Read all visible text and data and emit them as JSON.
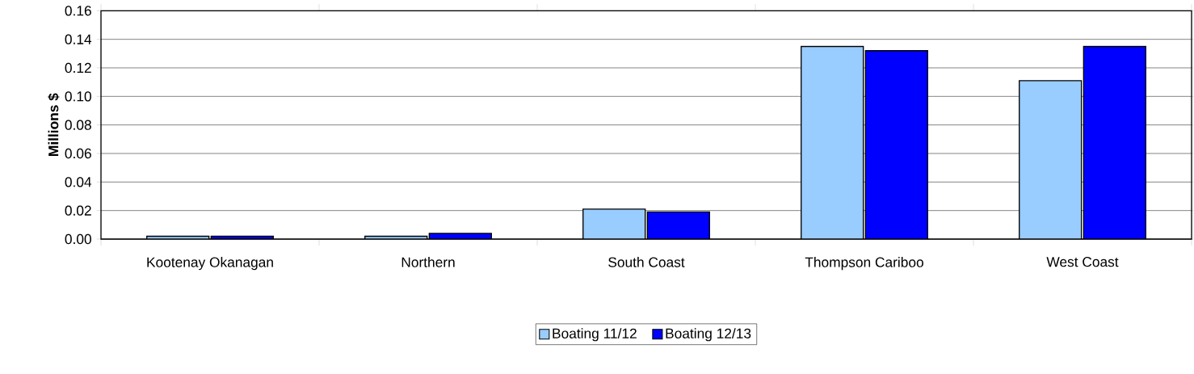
{
  "chart_data": {
    "type": "bar",
    "ylabel": "Millions $",
    "categories": [
      "Kootenay Okanagan",
      "Northern",
      "South Coast",
      "Thompson Cariboo",
      "West Coast"
    ],
    "series": [
      {
        "name": "Boating 11/12",
        "color": "#99ccff",
        "values": [
          0.002,
          0.002,
          0.021,
          0.135,
          0.111
        ]
      },
      {
        "name": "Boating 12/13",
        "color": "#0000ff",
        "values": [
          0.002,
          0.004,
          0.019,
          0.132,
          0.135
        ]
      }
    ],
    "ylim": [
      0,
      0.16
    ],
    "yticks": [
      {
        "value": 0,
        "label": "0.00"
      },
      {
        "value": 0.02,
        "label": "0.02"
      },
      {
        "value": 0.04,
        "label": "0.04"
      },
      {
        "value": 0.06,
        "label": "0.06"
      },
      {
        "value": 0.08,
        "label": "0.08"
      },
      {
        "value": 0.1,
        "label": "0.10"
      },
      {
        "value": 0.12,
        "label": "0.12"
      },
      {
        "value": 0.14,
        "label": "0.14"
      },
      {
        "value": 0.16,
        "label": "0.16"
      }
    ],
    "grid": "y",
    "legend": "bottom"
  }
}
